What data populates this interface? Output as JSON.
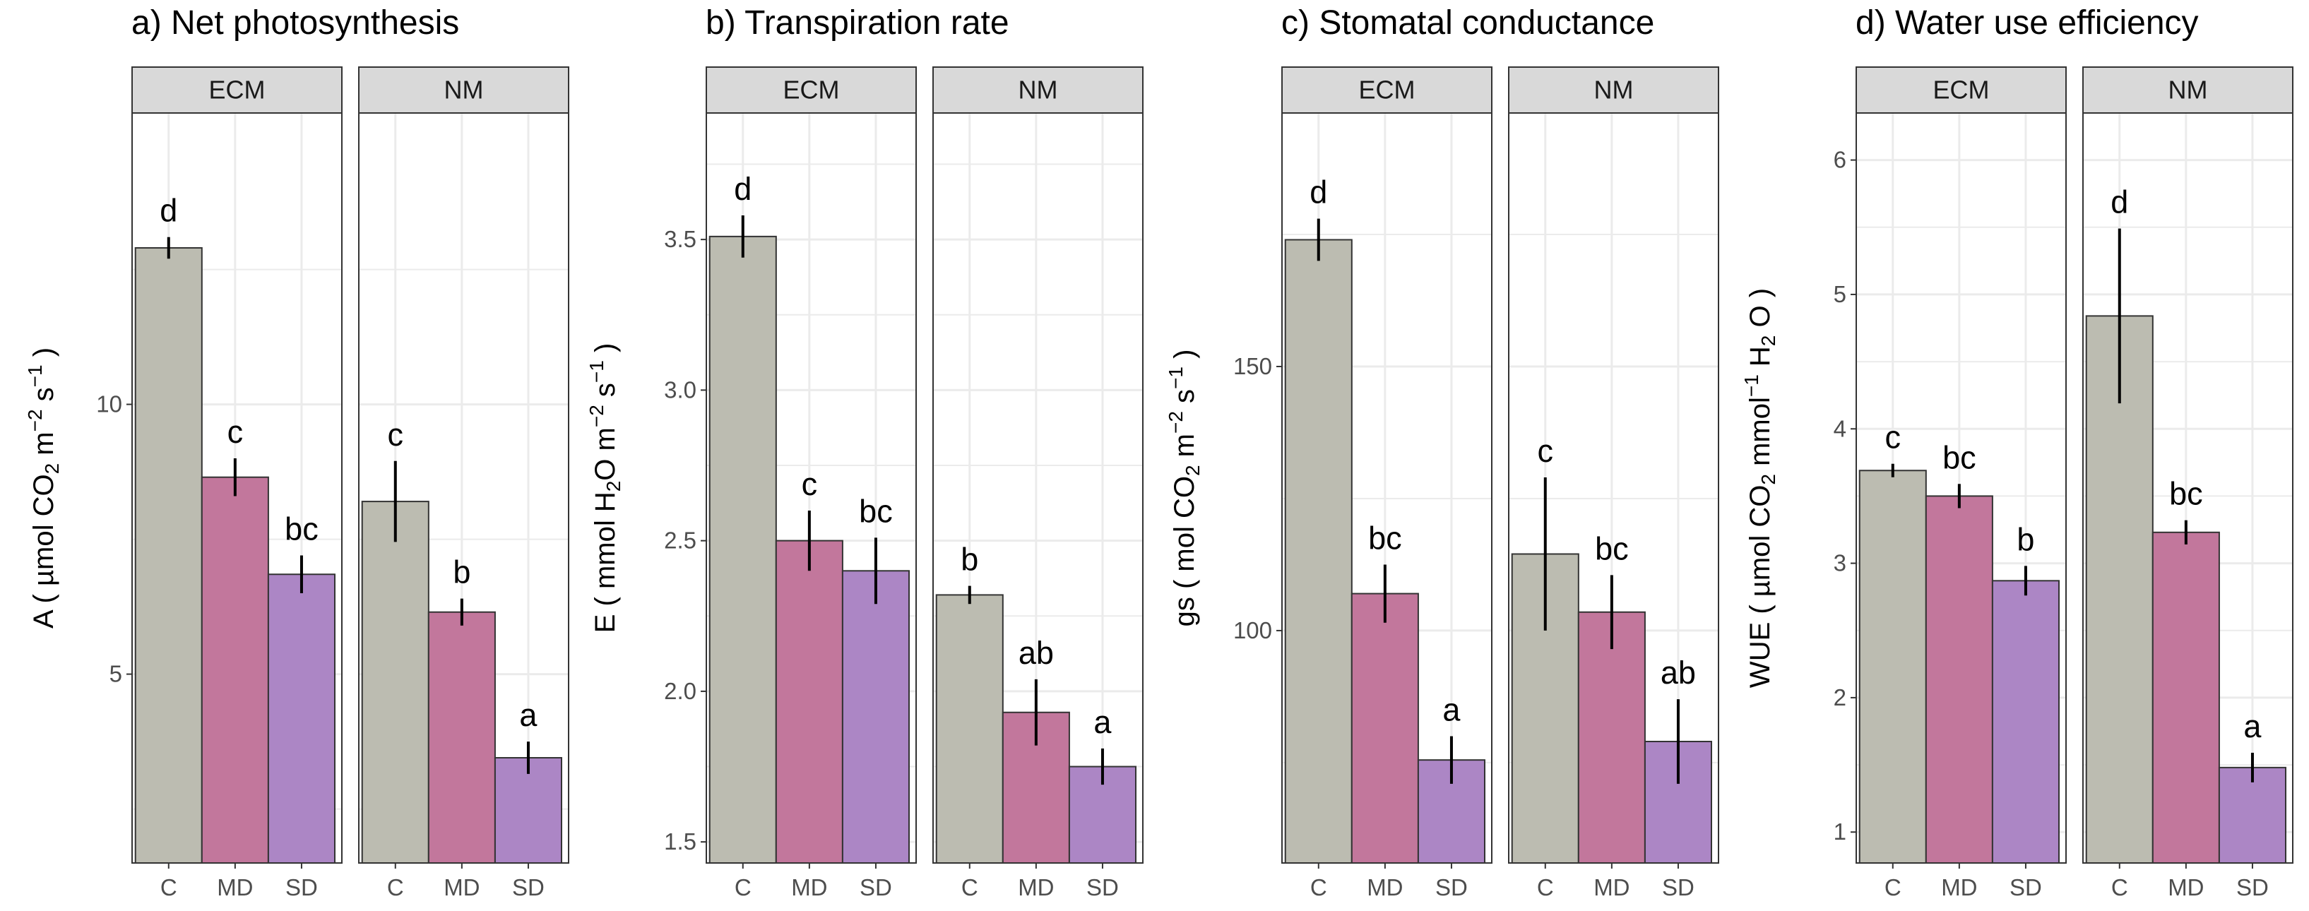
{
  "chart_data": [
    {
      "type": "bar",
      "title": "a) Net photosynthesis",
      "ylabel": "A ( µmol CO₂ m⁻² s⁻¹ )",
      "ylabel_parts": [
        "A ( µmol CO",
        "2",
        " m",
        "−2",
        " s",
        "−1",
        " )"
      ],
      "ylim": [
        1.5,
        15.4
      ],
      "yticks": [
        5,
        10
      ],
      "yticklabels": [
        "5",
        "10"
      ],
      "categories": [
        "C",
        "MD",
        "SD"
      ],
      "facets": [
        {
          "name": "ECM",
          "values": [
            12.9,
            8.65,
            6.85
          ],
          "errors": [
            0.2,
            0.35,
            0.35
          ],
          "labels": [
            "d",
            "c",
            "bc"
          ]
        },
        {
          "name": "NM",
          "values": [
            8.2,
            6.15,
            3.45
          ],
          "errors": [
            0.75,
            0.25,
            0.3
          ],
          "labels": [
            "c",
            "b",
            "a"
          ]
        }
      ]
    },
    {
      "type": "bar",
      "title": "b) Transpiration rate",
      "ylabel": "E ( mmol H₂O m⁻² s⁻¹ )",
      "ylabel_parts": [
        "E ( mmol H",
        "2",
        "O m",
        "−2",
        " s",
        "−1",
        " )"
      ],
      "ylim": [
        1.43,
        3.92
      ],
      "yticks": [
        1.5,
        2.0,
        2.5,
        3.0,
        3.5
      ],
      "yticklabels": [
        "1.5",
        "2.0",
        "2.5",
        "3.0",
        "3.5"
      ],
      "categories": [
        "C",
        "MD",
        "SD"
      ],
      "facets": [
        {
          "name": "ECM",
          "values": [
            3.51,
            2.5,
            2.4
          ],
          "errors": [
            0.07,
            0.1,
            0.11
          ],
          "labels": [
            "d",
            "c",
            "bc"
          ]
        },
        {
          "name": "NM",
          "values": [
            2.32,
            1.93,
            1.75
          ],
          "errors": [
            0.03,
            0.11,
            0.06
          ],
          "labels": [
            "b",
            "ab",
            "a"
          ]
        }
      ]
    },
    {
      "type": "bar",
      "title": "c) Stomatal conductance",
      "ylabel": "gs ( mol CO₂ m⁻² s⁻¹ )",
      "ylabel_parts": [
        "gs ( mol CO",
        "2",
        " m",
        "−2",
        " s",
        "−1",
        " )"
      ],
      "ylim": [
        56,
        198
      ],
      "yticks": [
        100,
        150
      ],
      "yticklabels": [
        "100",
        "150"
      ],
      "categories": [
        "C",
        "MD",
        "SD"
      ],
      "facets": [
        {
          "name": "ECM",
          "values": [
            174,
            107,
            75.5
          ],
          "errors": [
            4,
            5.5,
            4.5
          ],
          "labels": [
            "d",
            "bc",
            "a"
          ]
        },
        {
          "name": "NM",
          "values": [
            114.5,
            103.5,
            79
          ],
          "errors": [
            14.5,
            7,
            8
          ],
          "labels": [
            "c",
            "bc",
            "ab"
          ]
        }
      ]
    },
    {
      "type": "bar",
      "title": "d) Water use efficiency",
      "ylabel": "WUE ( µmol CO₂ mmol⁻¹ H₂O )",
      "ylabel_parts": [
        "WUE ( µmol CO",
        "2",
        " mmol",
        "−1",
        " H",
        "2",
        " O )"
      ],
      "ylim": [
        0.77,
        6.35
      ],
      "yticks": [
        1,
        2,
        3,
        4,
        5,
        6
      ],
      "yticklabels": [
        "1",
        "2",
        "3",
        "4",
        "5",
        "6"
      ],
      "categories": [
        "C",
        "MD",
        "SD"
      ],
      "facets": [
        {
          "name": "ECM",
          "values": [
            3.69,
            3.5,
            2.87
          ],
          "errors": [
            0.05,
            0.09,
            0.11
          ],
          "labels": [
            "c",
            "bc",
            "b"
          ]
        },
        {
          "name": "NM",
          "values": [
            4.84,
            3.23,
            1.48
          ],
          "errors": [
            0.65,
            0.09,
            0.11
          ],
          "labels": [
            "d",
            "bc",
            "a"
          ]
        }
      ]
    }
  ],
  "colors": {
    "C": "#bcbcb1",
    "MD": "#c2779c",
    "SD": "#ac86c5",
    "strip_fill": "#d9d9d9",
    "panel_border": "#333333",
    "grid": "#ebebeb"
  }
}
